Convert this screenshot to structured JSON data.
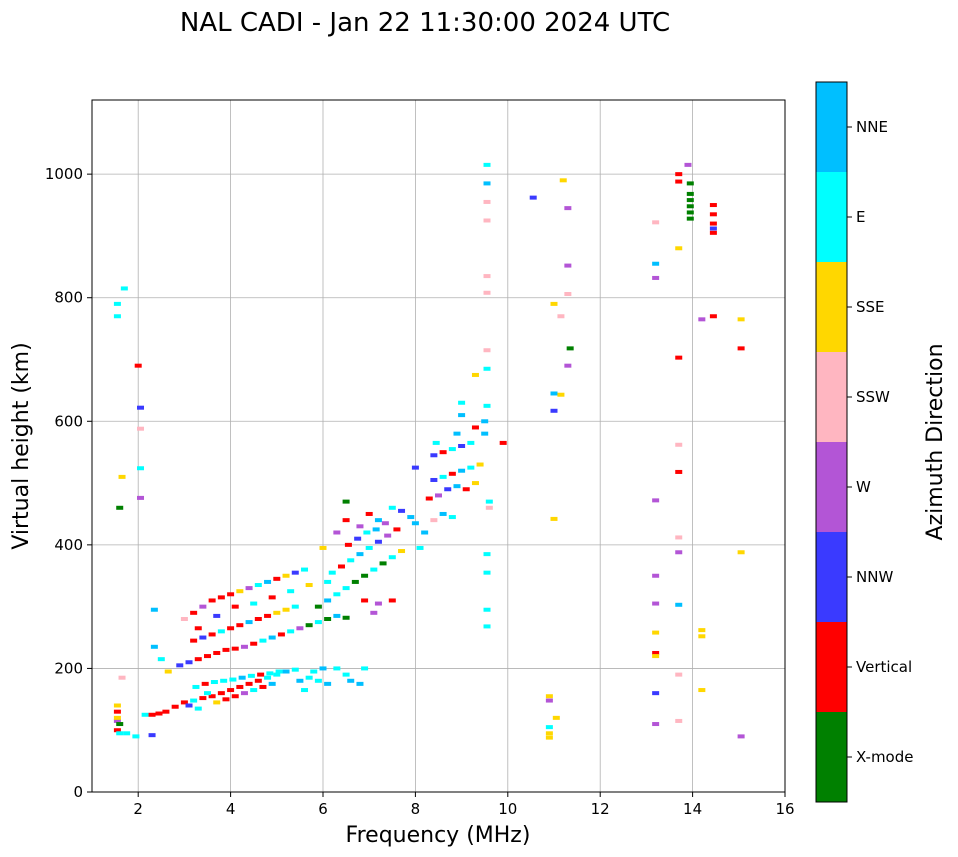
{
  "chart_data": {
    "type": "scatter",
    "title": "NAL CADI - Jan 22 11:30:00 2024 UTC",
    "xlabel": "Frequency (MHz)",
    "ylabel": "Virtual height (km)",
    "xlim": [
      1,
      16
    ],
    "ylim": [
      0,
      1120
    ],
    "xticks": [
      2,
      4,
      6,
      8,
      10,
      12,
      14,
      16
    ],
    "yticks": [
      0,
      200,
      400,
      600,
      800,
      1000
    ],
    "grid": true,
    "colorbar": {
      "title": "Azimuth Direction",
      "categories": [
        {
          "label": "X-mode",
          "color": "#008000"
        },
        {
          "label": "Vertical",
          "color": "#ff0000"
        },
        {
          "label": "NNW",
          "color": "#3a3aff"
        },
        {
          "label": "W",
          "color": "#b355d6"
        },
        {
          "label": "SSW",
          "color": "#ffb6c1"
        },
        {
          "label": "SSE",
          "color": "#ffd700"
        },
        {
          "label": "E",
          "color": "#00ffff"
        },
        {
          "label": "NNE",
          "color": "#00bfff"
        }
      ]
    },
    "points": [
      [
        1.55,
        130,
        "Vertical"
      ],
      [
        1.55,
        115,
        "W"
      ],
      [
        1.55,
        100,
        "Vertical"
      ],
      [
        1.55,
        120,
        "SSE"
      ],
      [
        1.55,
        140,
        "SSE"
      ],
      [
        1.6,
        110,
        "X-mode"
      ],
      [
        1.6,
        95,
        "E"
      ],
      [
        1.65,
        185,
        "SSW"
      ],
      [
        1.55,
        790,
        "E"
      ],
      [
        1.55,
        770,
        "E"
      ],
      [
        1.7,
        815,
        "E"
      ],
      [
        1.65,
        510,
        "SSE"
      ],
      [
        1.6,
        460,
        "X-mode"
      ],
      [
        2.0,
        690,
        "Vertical"
      ],
      [
        2.05,
        622,
        "NNW"
      ],
      [
        2.05,
        588,
        "SSW"
      ],
      [
        2.05,
        524,
        "E"
      ],
      [
        2.05,
        476,
        "W"
      ],
      [
        1.75,
        95,
        "E"
      ],
      [
        1.95,
        90,
        "E"
      ],
      [
        2.15,
        125,
        "E"
      ],
      [
        2.3,
        125,
        "Vertical"
      ],
      [
        2.3,
        92,
        "NNW"
      ],
      [
        2.45,
        127,
        "Vertical"
      ],
      [
        2.6,
        130,
        "Vertical"
      ],
      [
        2.8,
        138,
        "Vertical"
      ],
      [
        3.0,
        145,
        "Vertical"
      ],
      [
        3.2,
        148,
        "E"
      ],
      [
        3.4,
        152,
        "Vertical"
      ],
      [
        3.6,
        155,
        "Vertical"
      ],
      [
        3.8,
        160,
        "Vertical"
      ],
      [
        4.0,
        165,
        "Vertical"
      ],
      [
        4.2,
        170,
        "Vertical"
      ],
      [
        4.4,
        175,
        "Vertical"
      ],
      [
        4.6,
        180,
        "Vertical"
      ],
      [
        4.8,
        185,
        "E"
      ],
      [
        5.0,
        190,
        "E"
      ],
      [
        5.2,
        195,
        "NNE"
      ],
      [
        5.4,
        198,
        "E"
      ],
      [
        3.1,
        140,
        "NNW"
      ],
      [
        3.3,
        135,
        "E"
      ],
      [
        3.5,
        160,
        "E"
      ],
      [
        3.7,
        145,
        "SSE"
      ],
      [
        3.9,
        150,
        "Vertical"
      ],
      [
        4.1,
        155,
        "Vertical"
      ],
      [
        4.3,
        160,
        "W"
      ],
      [
        4.5,
        165,
        "E"
      ],
      [
        4.7,
        170,
        "Vertical"
      ],
      [
        4.9,
        175,
        "NNE"
      ],
      [
        3.25,
        170,
        "E"
      ],
      [
        3.45,
        175,
        "Vertical"
      ],
      [
        3.65,
        178,
        "E"
      ],
      [
        3.85,
        180,
        "E"
      ],
      [
        4.05,
        182,
        "E"
      ],
      [
        4.25,
        185,
        "NNE"
      ],
      [
        4.45,
        188,
        "E"
      ],
      [
        4.65,
        190,
        "Vertical"
      ],
      [
        4.85,
        192,
        "E"
      ],
      [
        5.05,
        195,
        "E"
      ],
      [
        5.5,
        180,
        "NNE"
      ],
      [
        5.7,
        185,
        "E"
      ],
      [
        5.9,
        180,
        "E"
      ],
      [
        6.1,
        175,
        "NNE"
      ],
      [
        6.3,
        200,
        "E"
      ],
      [
        6.5,
        190,
        "E"
      ],
      [
        6.6,
        180,
        "NNE"
      ],
      [
        6.8,
        175,
        "NNE"
      ],
      [
        6.0,
        200,
        "NNE"
      ],
      [
        5.6,
        165,
        "E"
      ],
      [
        5.8,
        195,
        "E"
      ],
      [
        6.9,
        200,
        "E"
      ],
      [
        2.9,
        205,
        "NNW"
      ],
      [
        3.1,
        210,
        "NNW"
      ],
      [
        3.3,
        215,
        "Vertical"
      ],
      [
        3.5,
        220,
        "Vertical"
      ],
      [
        3.7,
        225,
        "Vertical"
      ],
      [
        3.9,
        230,
        "Vertical"
      ],
      [
        4.1,
        232,
        "Vertical"
      ],
      [
        4.3,
        235,
        "W"
      ],
      [
        4.5,
        240,
        "Vertical"
      ],
      [
        4.7,
        245,
        "E"
      ],
      [
        4.9,
        250,
        "NNE"
      ],
      [
        5.1,
        255,
        "Vertical"
      ],
      [
        5.3,
        260,
        "E"
      ],
      [
        5.5,
        265,
        "W"
      ],
      [
        5.7,
        270,
        "X-mode"
      ],
      [
        5.9,
        275,
        "E"
      ],
      [
        6.1,
        280,
        "X-mode"
      ],
      [
        6.3,
        285,
        "NNE"
      ],
      [
        6.5,
        282,
        "X-mode"
      ],
      [
        3.2,
        245,
        "Vertical"
      ],
      [
        3.4,
        250,
        "NNW"
      ],
      [
        3.6,
        255,
        "Vertical"
      ],
      [
        3.8,
        260,
        "E"
      ],
      [
        4.0,
        265,
        "Vertical"
      ],
      [
        4.2,
        270,
        "Vertical"
      ],
      [
        4.4,
        275,
        "NNE"
      ],
      [
        4.6,
        280,
        "Vertical"
      ],
      [
        4.8,
        285,
        "Vertical"
      ],
      [
        5.0,
        290,
        "SSE"
      ],
      [
        5.2,
        295,
        "SSE"
      ],
      [
        5.4,
        300,
        "E"
      ],
      [
        3.0,
        280,
        "SSW"
      ],
      [
        3.2,
        290,
        "Vertical"
      ],
      [
        3.4,
        300,
        "W"
      ],
      [
        3.6,
        310,
        "Vertical"
      ],
      [
        3.8,
        315,
        "Vertical"
      ],
      [
        4.0,
        320,
        "Vertical"
      ],
      [
        4.2,
        325,
        "SSE"
      ],
      [
        4.4,
        330,
        "W"
      ],
      [
        4.6,
        335,
        "E"
      ],
      [
        4.8,
        340,
        "NNE"
      ],
      [
        5.0,
        345,
        "Vertical"
      ],
      [
        5.2,
        350,
        "SSE"
      ],
      [
        5.4,
        355,
        "NNW"
      ],
      [
        5.6,
        360,
        "E"
      ],
      [
        2.35,
        295,
        "NNE"
      ],
      [
        2.35,
        235,
        "NNE"
      ],
      [
        2.5,
        215,
        "E"
      ],
      [
        2.65,
        195,
        "SSE"
      ],
      [
        3.3,
        265,
        "Vertical"
      ],
      [
        3.7,
        285,
        "NNW"
      ],
      [
        4.1,
        300,
        "Vertical"
      ],
      [
        4.5,
        305,
        "E"
      ],
      [
        4.9,
        315,
        "Vertical"
      ],
      [
        5.3,
        325,
        "E"
      ],
      [
        5.7,
        335,
        "SSE"
      ],
      [
        6.1,
        340,
        "E"
      ],
      [
        5.9,
        300,
        "X-mode"
      ],
      [
        6.1,
        310,
        "NNE"
      ],
      [
        6.3,
        320,
        "E"
      ],
      [
        6.5,
        330,
        "E"
      ],
      [
        6.7,
        340,
        "X-mode"
      ],
      [
        6.9,
        350,
        "X-mode"
      ],
      [
        7.1,
        360,
        "E"
      ],
      [
        7.3,
        370,
        "X-mode"
      ],
      [
        7.5,
        380,
        "E"
      ],
      [
        7.7,
        390,
        "SSE"
      ],
      [
        6.2,
        355,
        "E"
      ],
      [
        6.4,
        365,
        "Vertical"
      ],
      [
        6.6,
        375,
        "E"
      ],
      [
        6.8,
        385,
        "NNE"
      ],
      [
        7.0,
        395,
        "E"
      ],
      [
        7.2,
        405,
        "NNW"
      ],
      [
        7.4,
        415,
        "W"
      ],
      [
        7.6,
        425,
        "Vertical"
      ],
      [
        6.0,
        395,
        "SSE"
      ],
      [
        6.3,
        420,
        "W"
      ],
      [
        6.5,
        440,
        "Vertical"
      ],
      [
        6.5,
        470,
        "X-mode"
      ],
      [
        6.8,
        430,
        "W"
      ],
      [
        7.0,
        450,
        "Vertical"
      ],
      [
        7.2,
        440,
        "NNE"
      ],
      [
        7.5,
        460,
        "E"
      ],
      [
        7.7,
        455,
        "NNW"
      ],
      [
        7.9,
        445,
        "NNE"
      ],
      [
        6.9,
        310,
        "Vertical"
      ],
      [
        7.2,
        305,
        "W"
      ],
      [
        7.5,
        310,
        "Vertical"
      ],
      [
        7.1,
        290,
        "W"
      ],
      [
        6.55,
        400,
        "Vertical"
      ],
      [
        6.75,
        410,
        "NNW"
      ],
      [
        6.95,
        420,
        "E"
      ],
      [
        7.15,
        425,
        "NNE"
      ],
      [
        7.35,
        435,
        "W"
      ],
      [
        8.0,
        435,
        "NNE"
      ],
      [
        8.2,
        420,
        "NNE"
      ],
      [
        8.4,
        440,
        "SSW"
      ],
      [
        8.6,
        450,
        "NNE"
      ],
      [
        8.8,
        445,
        "E"
      ],
      [
        8.3,
        475,
        "Vertical"
      ],
      [
        8.5,
        480,
        "W"
      ],
      [
        8.7,
        490,
        "NNW"
      ],
      [
        8.9,
        495,
        "NNE"
      ],
      [
        9.1,
        490,
        "Vertical"
      ],
      [
        9.3,
        500,
        "SSE"
      ],
      [
        8.4,
        505,
        "NNW"
      ],
      [
        8.6,
        510,
        "E"
      ],
      [
        8.8,
        515,
        "Vertical"
      ],
      [
        9.0,
        520,
        "NNE"
      ],
      [
        9.2,
        525,
        "E"
      ],
      [
        9.4,
        530,
        "SSE"
      ],
      [
        8.4,
        545,
        "NNW"
      ],
      [
        8.6,
        550,
        "Vertical"
      ],
      [
        8.8,
        555,
        "E"
      ],
      [
        9.0,
        560,
        "NNW"
      ],
      [
        9.2,
        565,
        "E"
      ],
      [
        8.45,
        565,
        "E"
      ],
      [
        8.9,
        580,
        "NNE"
      ],
      [
        9.3,
        590,
        "Vertical"
      ],
      [
        9.5,
        580,
        "NNE"
      ],
      [
        9.0,
        610,
        "NNE"
      ],
      [
        9.0,
        630,
        "E"
      ],
      [
        9.9,
        565,
        "Vertical"
      ],
      [
        9.5,
        600,
        "NNE"
      ],
      [
        9.6,
        470,
        "E"
      ],
      [
        9.6,
        460,
        "SSW"
      ],
      [
        8.1,
        395,
        "E"
      ],
      [
        8.0,
        525,
        "NNW"
      ],
      [
        9.55,
        1015,
        "E"
      ],
      [
        9.55,
        985,
        "NNE"
      ],
      [
        9.55,
        955,
        "SSW"
      ],
      [
        9.55,
        925,
        "SSW"
      ],
      [
        9.55,
        835,
        "SSW"
      ],
      [
        9.55,
        808,
        "SSW"
      ],
      [
        9.55,
        715,
        "SSW"
      ],
      [
        9.55,
        685,
        "E"
      ],
      [
        9.3,
        675,
        "SSE"
      ],
      [
        9.55,
        625,
        "E"
      ],
      [
        9.55,
        385,
        "E"
      ],
      [
        9.55,
        355,
        "E"
      ],
      [
        9.55,
        295,
        "E"
      ],
      [
        9.55,
        268,
        "E"
      ],
      [
        10.55,
        962,
        "NNW"
      ],
      [
        11.2,
        990,
        "SSE"
      ],
      [
        11.3,
        945,
        "W"
      ],
      [
        11.3,
        852,
        "W"
      ],
      [
        11.3,
        806,
        "SSW"
      ],
      [
        11.0,
        790,
        "SSE"
      ],
      [
        11.15,
        770,
        "SSW"
      ],
      [
        11.35,
        718,
        "X-mode"
      ],
      [
        11.3,
        690,
        "W"
      ],
      [
        11.0,
        645,
        "NNE"
      ],
      [
        11.15,
        643,
        "SSE"
      ],
      [
        11.0,
        617,
        "NNW"
      ],
      [
        11.0,
        442,
        "SSE"
      ],
      [
        10.9,
        155,
        "SSE"
      ],
      [
        10.9,
        148,
        "W"
      ],
      [
        11.05,
        120,
        "SSE"
      ],
      [
        10.9,
        105,
        "E"
      ],
      [
        10.9,
        95,
        "SSE"
      ],
      [
        10.9,
        88,
        "SSE"
      ],
      [
        13.2,
        922,
        "SSW"
      ],
      [
        13.2,
        855,
        "NNE"
      ],
      [
        13.2,
        832,
        "W"
      ],
      [
        13.2,
        472,
        "W"
      ],
      [
        13.2,
        350,
        "W"
      ],
      [
        13.2,
        305,
        "W"
      ],
      [
        13.2,
        258,
        "SSE"
      ],
      [
        13.2,
        225,
        "Vertical"
      ],
      [
        13.2,
        220,
        "SSE"
      ],
      [
        13.2,
        160,
        "NNW"
      ],
      [
        13.2,
        110,
        "W"
      ],
      [
        13.7,
        1000,
        "Vertical"
      ],
      [
        13.7,
        988,
        "Vertical"
      ],
      [
        13.9,
        1015,
        "W"
      ],
      [
        13.95,
        985,
        "X-mode"
      ],
      [
        13.95,
        968,
        "X-mode"
      ],
      [
        13.95,
        958,
        "X-mode"
      ],
      [
        13.95,
        948,
        "X-mode"
      ],
      [
        13.95,
        938,
        "X-mode"
      ],
      [
        13.95,
        928,
        "X-mode"
      ],
      [
        13.7,
        880,
        "SSE"
      ],
      [
        13.7,
        703,
        "Vertical"
      ],
      [
        13.7,
        562,
        "SSW"
      ],
      [
        13.7,
        518,
        "Vertical"
      ],
      [
        13.7,
        412,
        "SSW"
      ],
      [
        13.7,
        388,
        "W"
      ],
      [
        13.7,
        303,
        "NNE"
      ],
      [
        13.7,
        190,
        "SSW"
      ],
      [
        13.7,
        115,
        "SSW"
      ],
      [
        14.2,
        262,
        "SSE"
      ],
      [
        14.2,
        252,
        "SSE"
      ],
      [
        14.2,
        165,
        "SSE"
      ],
      [
        14.2,
        765,
        "W"
      ],
      [
        14.45,
        770,
        "Vertical"
      ],
      [
        14.45,
        950,
        "Vertical"
      ],
      [
        14.45,
        935,
        "Vertical"
      ],
      [
        14.45,
        920,
        "Vertical"
      ],
      [
        14.45,
        905,
        "Vertical"
      ],
      [
        14.45,
        912,
        "NNW"
      ],
      [
        15.05,
        765,
        "SSE"
      ],
      [
        15.05,
        718,
        "Vertical"
      ],
      [
        15.05,
        388,
        "SSE"
      ],
      [
        15.05,
        90,
        "W"
      ]
    ]
  }
}
